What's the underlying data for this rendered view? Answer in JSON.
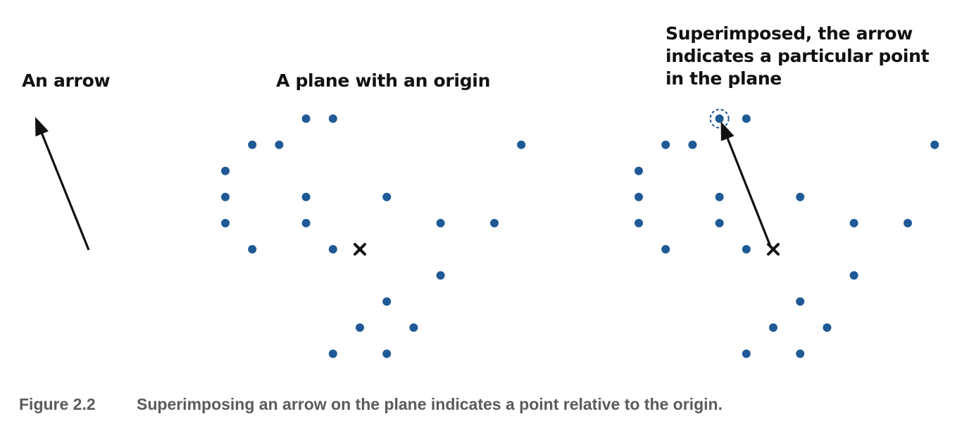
{
  "panels": {
    "arrow": {
      "title": [
        "An arrow"
      ]
    },
    "plane": {
      "title": [
        "A plane with an origin"
      ]
    },
    "superimposed": {
      "title": [
        "Superimposed, the arrow",
        "indicates a particular point",
        "in the plane"
      ]
    }
  },
  "caption": {
    "label": "Figure 2.2",
    "text": "Superimposing an arrow on the plane indicates a point relative to the origin."
  },
  "colors": {
    "dot": "#1f5a96",
    "ink": "#111111",
    "caption": "#5b5b5b"
  },
  "icons": {
    "origin_marker": "x-mark",
    "arrow_head": "triangle-arrowhead",
    "highlight": "dashed-circle"
  }
}
